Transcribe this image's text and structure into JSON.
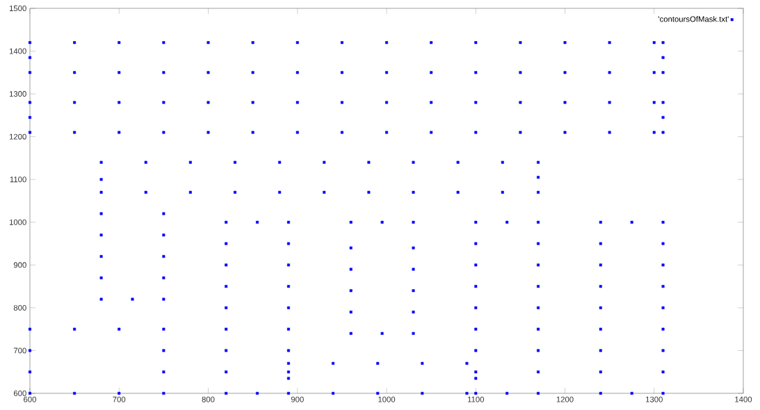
{
  "chart_data": {
    "type": "scatter",
    "marker": "square",
    "legend": "top right",
    "xlim": [
      600,
      1400
    ],
    "ylim": [
      600,
      1500
    ],
    "xticks": [
      600,
      700,
      800,
      900,
      1000,
      1100,
      1200,
      1300,
      1400
    ],
    "yticks": [
      600,
      700,
      800,
      900,
      1000,
      1100,
      1200,
      1300,
      1400,
      1500
    ],
    "series": [
      {
        "name": "'contoursOfMask.txt'",
        "color": "#0000ff",
        "x": [
          600,
          650,
          700,
          750,
          800,
          850,
          900,
          950,
          1000,
          1050,
          1100,
          1150,
          1200,
          1250,
          1300,
          1310,
          600,
          650,
          700,
          750,
          800,
          850,
          900,
          950,
          1000,
          1050,
          1100,
          1150,
          1200,
          1250,
          1300,
          1310,
          600,
          1310
        ],
        "values": [
          1350,
          1350,
          1350,
          1350,
          1350,
          1350,
          1350,
          1350,
          1350,
          1350,
          1350,
          1350,
          1350,
          1350,
          1350,
          1350,
          1420,
          1420,
          1420,
          1420,
          1420,
          1420,
          1420,
          1420,
          1420,
          1420,
          1420,
          1420,
          1420,
          1420,
          1420,
          1420,
          1385,
          1385
        ]
      },
      {
        "color": "#0000ff",
        "x": [
          600,
          650,
          700,
          750,
          800,
          850,
          900,
          950,
          1000,
          1050,
          1100,
          1150,
          1200,
          1250,
          1300,
          1310,
          600,
          650,
          700,
          750,
          800,
          850,
          900,
          950,
          1000,
          1050,
          1100,
          1150,
          1200,
          1250,
          1300,
          1310,
          600,
          1310
        ],
        "values": [
          1210,
          1210,
          1210,
          1210,
          1210,
          1210,
          1210,
          1210,
          1210,
          1210,
          1210,
          1210,
          1210,
          1210,
          1210,
          1210,
          1280,
          1280,
          1280,
          1280,
          1280,
          1280,
          1280,
          1280,
          1280,
          1280,
          1280,
          1280,
          1280,
          1280,
          1280,
          1280,
          1245,
          1245
        ]
      },
      {
        "color": "#0000ff",
        "x": [
          680,
          730,
          780,
          830,
          880,
          930,
          980,
          1030,
          1080,
          1130,
          1170,
          680,
          730,
          780,
          830,
          880,
          930,
          980,
          1030,
          1080,
          1130,
          1170,
          680,
          680,
          680,
          680,
          680,
          680,
          1170,
          750,
          750,
          750,
          750,
          750,
          715
        ],
        "values": [
          1140,
          1140,
          1140,
          1140,
          1140,
          1140,
          1140,
          1140,
          1140,
          1140,
          1140,
          1070,
          1070,
          1070,
          1070,
          1070,
          1070,
          1070,
          1070,
          1070,
          1070,
          1070,
          820,
          870,
          920,
          970,
          1020,
          1100,
          1105,
          820,
          870,
          920,
          970,
          1020,
          820
        ]
      },
      {
        "color": "#0000ff",
        "x": [
          600,
          650,
          700,
          750,
          600,
          650,
          700,
          750,
          600,
          600,
          750,
          750
        ],
        "values": [
          600,
          600,
          600,
          600,
          750,
          750,
          750,
          750,
          650,
          700,
          650,
          700
        ]
      },
      {
        "color": "#0000ff",
        "x": [
          820,
          855,
          890,
          820,
          855,
          890,
          820,
          820,
          820,
          820,
          820,
          820,
          820,
          890,
          890,
          890,
          890,
          890,
          890,
          890
        ],
        "values": [
          600,
          600,
          600,
          1000,
          1000,
          1000,
          650,
          700,
          750,
          800,
          850,
          900,
          950,
          650,
          700,
          750,
          800,
          850,
          900,
          950
        ]
      },
      {
        "color": "#0000ff",
        "x": [
          940,
          990,
          1040,
          1090,
          890,
          940,
          990,
          1040,
          1090,
          890,
          1100
        ],
        "values": [
          600,
          600,
          600,
          600,
          670,
          670,
          670,
          670,
          670,
          635,
          635
        ]
      },
      {
        "color": "#0000ff",
        "x": [
          960,
          995,
          1030,
          960,
          995,
          1030,
          960,
          960,
          960,
          960,
          1030,
          1030,
          1030,
          1030
        ],
        "values": [
          740,
          740,
          740,
          1000,
          1000,
          1000,
          790,
          840,
          890,
          940,
          790,
          840,
          890,
          940
        ]
      },
      {
        "color": "#0000ff",
        "x": [
          1100,
          1135,
          1170,
          1100,
          1135,
          1170,
          1100,
          1100,
          1100,
          1100,
          1100,
          1100,
          1100,
          1170,
          1170,
          1170,
          1170,
          1170,
          1170,
          1170
        ],
        "values": [
          600,
          600,
          600,
          1000,
          1000,
          1000,
          650,
          700,
          750,
          800,
          850,
          900,
          950,
          650,
          700,
          750,
          800,
          850,
          900,
          950
        ]
      },
      {
        "color": "#0000ff",
        "x": [
          1240,
          1275,
          1310,
          1240,
          1275,
          1310,
          1240,
          1240,
          1240,
          1240,
          1240,
          1240,
          1240,
          1310,
          1310,
          1310,
          1310,
          1310,
          1310,
          1310
        ],
        "values": [
          600,
          600,
          600,
          1000,
          1000,
          1000,
          650,
          700,
          750,
          800,
          850,
          900,
          950,
          650,
          700,
          750,
          800,
          850,
          900,
          950
        ]
      }
    ]
  }
}
